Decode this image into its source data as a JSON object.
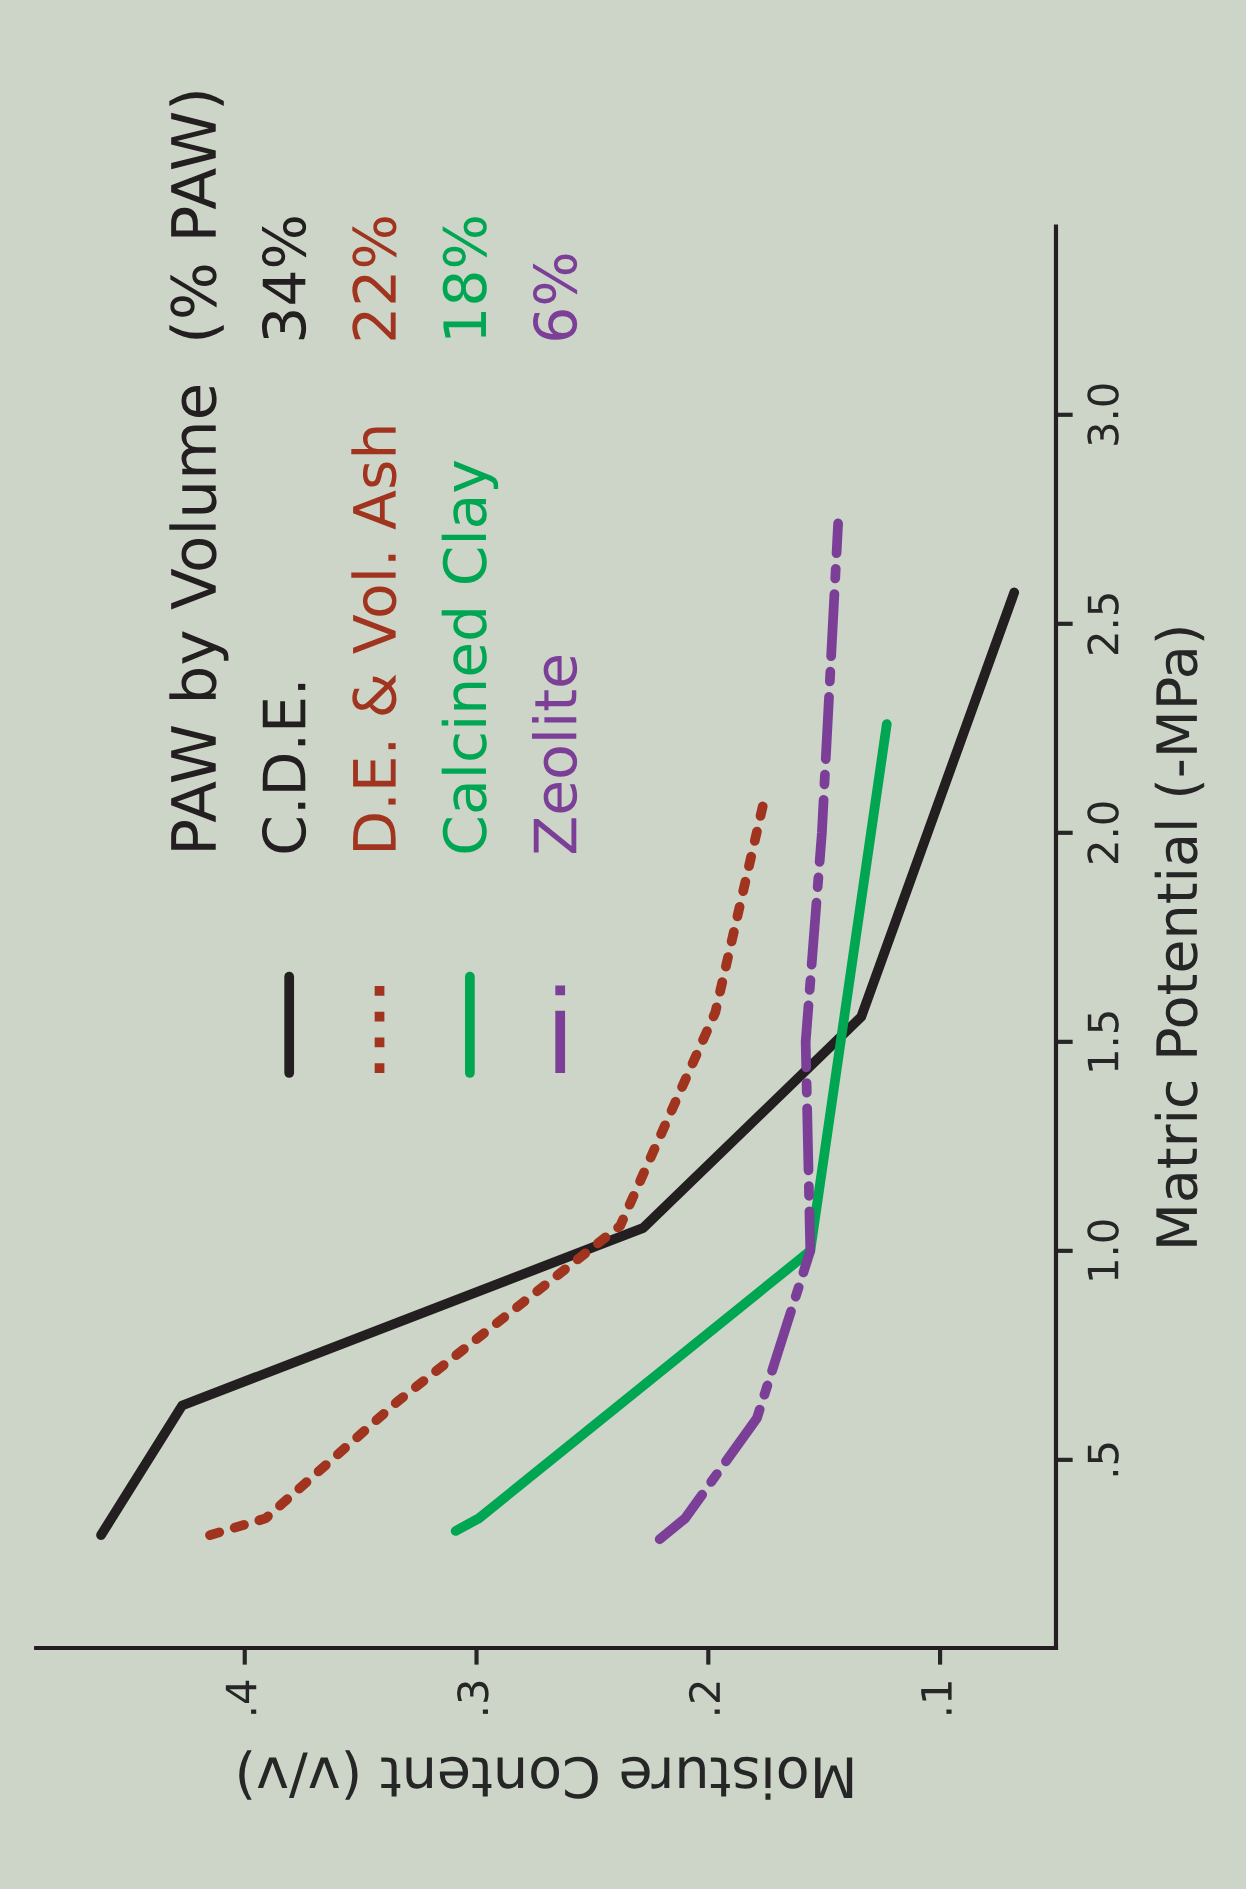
{
  "chart_data": {
    "type": "line",
    "xlabel": "Moisture Content (v/v)",
    "ylabel": "Matric Potential (-MPa)",
    "legend_title": "PAW by Volume  (% PAW)",
    "annotations": [
      "34%",
      "22%",
      "18%",
      "6%"
    ],
    "xlim": [
      0.49,
      0.05
    ],
    "xticks": [
      {
        "value": 0.4,
        "label": ".4"
      },
      {
        "value": 0.3,
        "label": ".3"
      },
      {
        "value": 0.2,
        "label": ".2"
      },
      {
        "value": 0.1,
        "label": ".1"
      }
    ],
    "ylim": [
      0.05,
      3.45
    ],
    "yticks": [
      {
        "value": 0.5,
        "label": ".5"
      },
      {
        "value": 1.0,
        "label": "1.0"
      },
      {
        "value": 1.5,
        "label": "1.5"
      },
      {
        "value": 2.0,
        "label": "2.0"
      },
      {
        "value": 2.5,
        "label": "2.5"
      },
      {
        "value": 3.0,
        "label": "3.0"
      }
    ],
    "grid": false,
    "legend": "top left",
    "marker": "none",
    "series": [
      {
        "name": "C.D.E.",
        "color": "#231f20",
        "line_style": "solid",
        "x": [
          0.462,
          0.427,
          0.228,
          0.134,
          0.068
        ],
        "values": [
          0.32,
          0.63,
          1.055,
          1.56,
          2.575
        ]
      },
      {
        "name": "D.E. & Vol. Ash",
        "color": "#a0341f",
        "line_style": "dotted",
        "x": [
          0.415,
          0.391,
          0.334,
          0.238,
          0.197,
          0.175
        ],
        "values": [
          0.32,
          0.36,
          0.64,
          1.06,
          1.57,
          2.1
        ]
      },
      {
        "name": "Calcined Clay",
        "color": "#00a651",
        "line_style": "solid",
        "x": [
          0.309,
          0.299,
          0.156,
          0.123
        ],
        "values": [
          0.33,
          0.36,
          1.0,
          2.26
        ]
      },
      {
        "name": "Zeolite",
        "color": "#7b3f98",
        "line_style": "dashdot",
        "x": [
          0.221,
          0.21,
          0.179,
          0.156,
          0.158,
          0.151,
          0.144
        ],
        "values": [
          0.31,
          0.36,
          0.6,
          1.0,
          1.5,
          2.0,
          2.74
        ]
      }
    ]
  }
}
